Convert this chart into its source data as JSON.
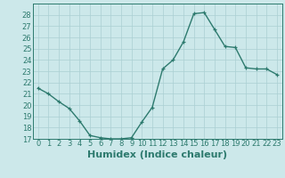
{
  "x": [
    0,
    1,
    2,
    3,
    4,
    5,
    6,
    7,
    8,
    9,
    10,
    11,
    12,
    13,
    14,
    15,
    16,
    17,
    18,
    19,
    20,
    21,
    22,
    23
  ],
  "y": [
    21.5,
    21.0,
    20.3,
    19.7,
    18.6,
    17.3,
    17.1,
    17.0,
    17.0,
    17.1,
    18.5,
    19.8,
    23.2,
    24.0,
    25.6,
    28.1,
    28.2,
    26.7,
    25.2,
    25.1,
    23.3,
    23.2,
    23.2,
    22.7
  ],
  "line_color": "#2d7a6e",
  "marker": "+",
  "bg_color": "#cce8ea",
  "grid_color": "#aacfd2",
  "xlabel": "Humidex (Indice chaleur)",
  "ylim": [
    17,
    29
  ],
  "xlim": [
    -0.5,
    23.5
  ],
  "yticks": [
    17,
    18,
    19,
    20,
    21,
    22,
    23,
    24,
    25,
    26,
    27,
    28
  ],
  "xticks": [
    0,
    1,
    2,
    3,
    4,
    5,
    6,
    7,
    8,
    9,
    10,
    11,
    12,
    13,
    14,
    15,
    16,
    17,
    18,
    19,
    20,
    21,
    22,
    23
  ],
  "xtick_labels": [
    "0",
    "1",
    "2",
    "3",
    "4",
    "5",
    "6",
    "7",
    "8",
    "9",
    "10",
    "11",
    "12",
    "13",
    "14",
    "15",
    "16",
    "17",
    "18",
    "19",
    "20",
    "21",
    "22",
    "23"
  ],
  "tick_label_size": 6,
  "xlabel_size": 8,
  "linewidth": 1.0,
  "marker_size": 3.5
}
